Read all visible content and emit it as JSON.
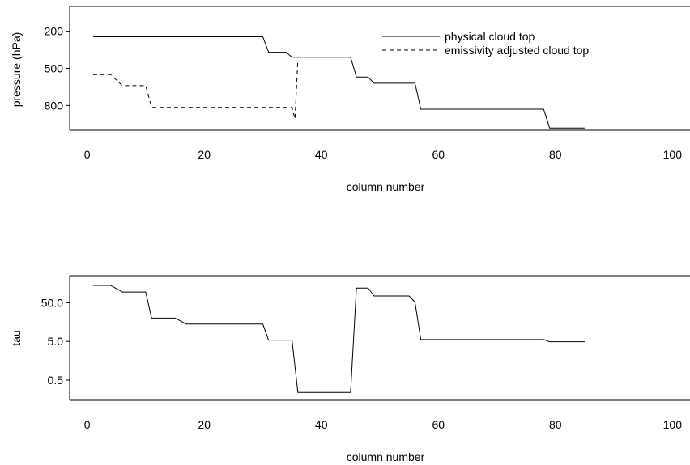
{
  "chart_data": [
    {
      "type": "line",
      "title": "",
      "xlabel": "column number",
      "ylabel": "pressure (hPa)",
      "xlim": [
        -3,
        103
      ],
      "ylim": [
        1000,
        0
      ],
      "y_reversed": true,
      "x_ticks": [
        0,
        20,
        40,
        60,
        80,
        100
      ],
      "y_ticks": [
        200,
        500,
        800
      ],
      "legend_position": "top-right",
      "series": [
        {
          "name": "physical cloud top",
          "style": "solid",
          "points": [
            [
              1,
              245
            ],
            [
              30,
              245
            ],
            [
              31,
              370
            ],
            [
              34,
              370
            ],
            [
              35,
              410
            ],
            [
              45,
              410
            ],
            [
              46,
              570
            ],
            [
              48,
              570
            ],
            [
              49,
              620
            ],
            [
              56,
              620
            ],
            [
              57,
              830
            ],
            [
              78,
              830
            ],
            [
              79,
              982
            ],
            [
              85,
              982
            ]
          ]
        },
        {
          "name": "emissivity adjusted cloud top",
          "style": "dashed",
          "points": [
            [
              1,
              550
            ],
            [
              4,
              550
            ],
            [
              6,
              640
            ],
            [
              10,
              640
            ],
            [
              11,
              815
            ],
            [
              35,
              815
            ],
            [
              35.5,
              910
            ],
            [
              36,
              430
            ]
          ]
        }
      ]
    },
    {
      "type": "line",
      "title": "",
      "xlabel": "column number",
      "ylabel": "tau",
      "xlim": [
        -3,
        103
      ],
      "ylim": [
        0.15,
        250
      ],
      "y_scale": "log",
      "x_ticks": [
        0,
        20,
        40,
        60,
        80,
        100
      ],
      "y_ticks": [
        0.5,
        5.0,
        50.0
      ],
      "y_tick_labels": [
        "0.5",
        "5.0",
        "50.0"
      ],
      "series": [
        {
          "style": "solid",
          "points": [
            [
              1,
              140
            ],
            [
              4,
              140
            ],
            [
              6,
              95
            ],
            [
              10,
              95
            ],
            [
              11,
              20
            ],
            [
              15,
              20
            ],
            [
              17,
              14
            ],
            [
              30,
              14
            ],
            [
              31,
              5.4
            ],
            [
              35,
              5.4
            ],
            [
              36,
              0.24
            ],
            [
              45,
              0.24
            ],
            [
              46,
              120
            ],
            [
              48,
              120
            ],
            [
              49,
              75
            ],
            [
              55,
              75
            ],
            [
              56,
              52
            ],
            [
              57,
              5.6
            ],
            [
              78,
              5.6
            ],
            [
              79,
              4.9
            ],
            [
              85,
              4.9
            ]
          ]
        }
      ]
    }
  ]
}
